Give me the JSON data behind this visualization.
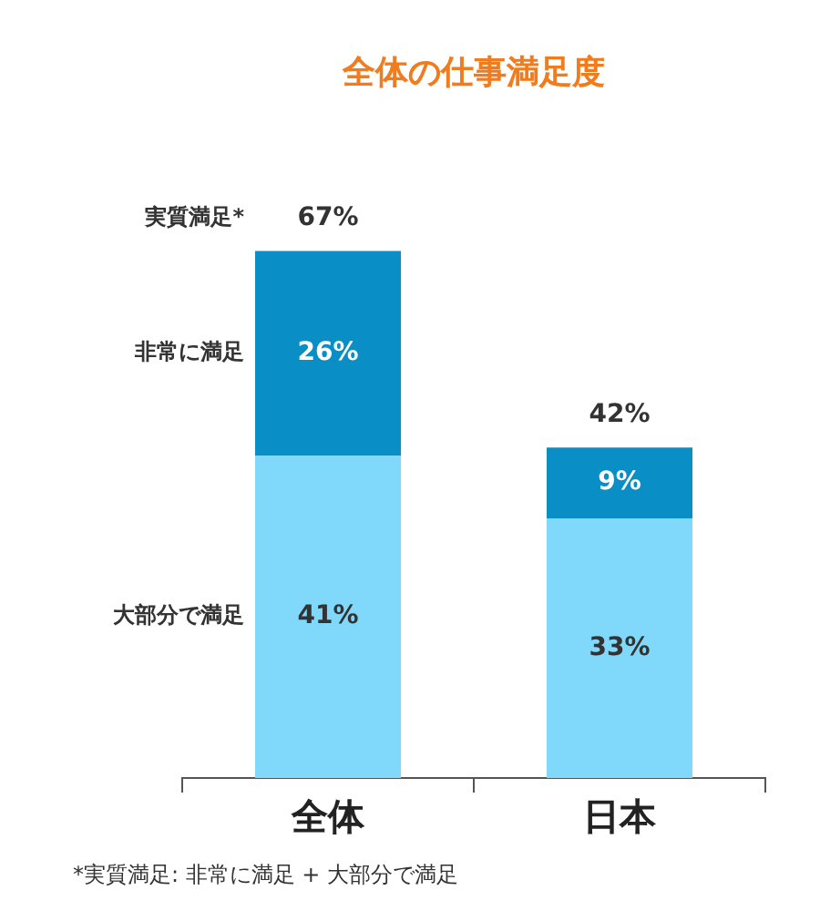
{
  "chart_data": {
    "type": "bar",
    "title": "全体の仕事満足度",
    "stacked": true,
    "categories": [
      "全体",
      "日本"
    ],
    "series": [
      {
        "name": "大部分で満足",
        "color": "#80d8fa",
        "values": [
          41,
          33
        ],
        "value_labels": [
          "41%",
          "33%"
        ]
      },
      {
        "name": "非常に満足",
        "color": "#0a8ec6",
        "values": [
          26,
          9
        ],
        "value_labels": [
          "26%",
          "9%"
        ]
      }
    ],
    "totals": [
      "67%",
      "42%"
    ],
    "legend": false,
    "grid": false,
    "tick_labels": "x",
    "annotations": [
      "実質満足*",
      "*実質満足: 非常に満足 + 大部分で満足"
    ]
  }
}
